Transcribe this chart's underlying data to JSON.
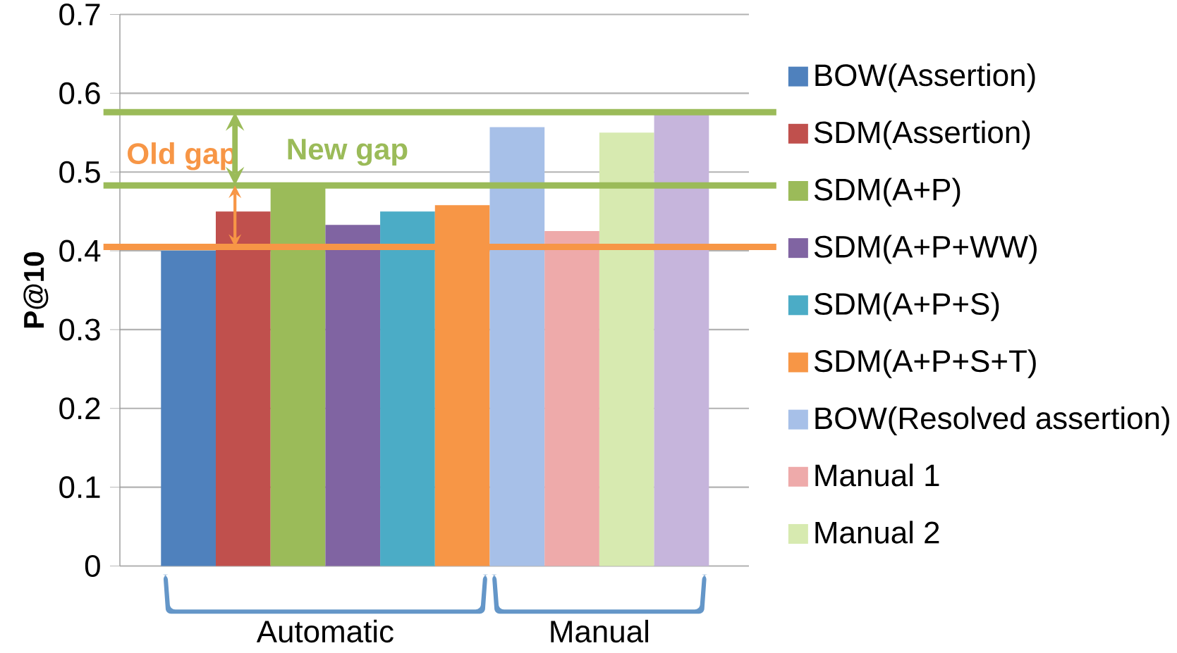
{
  "chart_data": {
    "type": "bar",
    "ylabel": "P@10",
    "categories": [
      "Automatic",
      "Manual"
    ],
    "series": [
      {
        "name": "BOW(Assertion)",
        "color": "#4f81bd",
        "values": [
          0.4,
          null
        ]
      },
      {
        "name": "SDM(Assertion)",
        "color": "#c0504d",
        "values": [
          0.45,
          null
        ]
      },
      {
        "name": "SDM(A+P)",
        "color": "#9bbb59",
        "values": [
          0.48,
          null
        ]
      },
      {
        "name": "SDM(A+P+WW)",
        "color": "#8064a2",
        "values": [
          0.433,
          null
        ]
      },
      {
        "name": "SDM(A+P+S)",
        "color": "#4bacc6",
        "values": [
          0.45,
          null
        ]
      },
      {
        "name": "SDM(A+P+S+T)",
        "color": "#f79646",
        "values": [
          0.458,
          null
        ]
      },
      {
        "name": "BOW(Resolved assertion)",
        "color": "#a7c0e8",
        "values": [
          null,
          0.557
        ]
      },
      {
        "name": "Manual 1",
        "color": "#eeaaaa",
        "values": [
          null,
          0.425
        ]
      },
      {
        "name": "Manual 2",
        "color": "#d7eab0",
        "values": [
          null,
          0.55
        ]
      },
      {
        "color": "#c6b5dc",
        "values": [
          null,
          0.574
        ]
      }
    ],
    "ylim": [
      0,
      0.7
    ],
    "yticks": [
      0,
      0.1,
      0.2,
      0.3,
      0.4,
      0.5,
      0.6,
      0.7
    ],
    "grid": "y",
    "legend": "right",
    "ref_lines": [
      {
        "axis": "y",
        "value": 0.576,
        "color": "#9bbb59"
      },
      {
        "axis": "y",
        "value": 0.483,
        "color": "#9bbb59"
      },
      {
        "axis": "y",
        "value": 0.405,
        "color": "#f79646"
      }
    ],
    "annotations": [
      "Old gap",
      "New gap"
    ]
  }
}
